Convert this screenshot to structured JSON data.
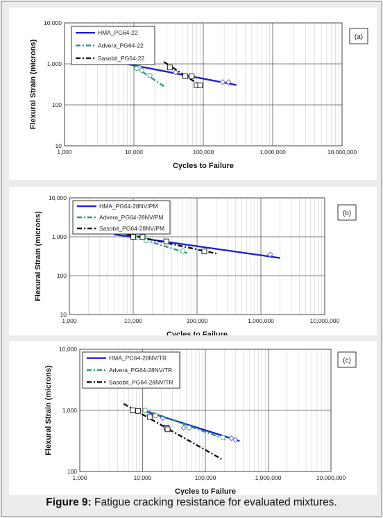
{
  "caption": {
    "label": "Figure 9:",
    "text": " Fatigue cracking resistance for evaluated mixtures."
  },
  "chart_data": [
    {
      "type": "scatter",
      "panel_label": "(a)",
      "xlabel": "Cycles to Failure",
      "ylabel": "Flexural Strain (microns)",
      "x_scale": "log",
      "y_scale": "log",
      "xlim": [
        1000,
        10000000
      ],
      "ylim": [
        10,
        10000
      ],
      "xticks": [
        "1,000",
        "10,000",
        "100,000",
        "1,000,000",
        "10,000,000"
      ],
      "yticks": [
        "10",
        "100",
        "1,000",
        "10,000"
      ],
      "grid": true,
      "legend": "top-left",
      "series": [
        {
          "name": "HMA_PG64-22",
          "color": "#1f1fd6",
          "dash": "solid",
          "marker": "diamond",
          "points": [
            [
              12000,
              820
            ],
            [
              40000,
              620
            ],
            [
              190000,
              360
            ],
            [
              230000,
              360
            ]
          ],
          "fit": [
            [
              5000,
              1150
            ],
            [
              300000,
              305
            ]
          ]
        },
        {
          "name": "Advera_PG64-22",
          "color": "#2a9a78",
          "dash": "dashdot",
          "marker": "circle",
          "points": [
            [
              11000,
              780
            ],
            [
              13000,
              700
            ],
            [
              17000,
              520
            ]
          ],
          "fit": [
            [
              10000,
              880
            ],
            [
              27000,
              285
            ]
          ]
        },
        {
          "name": "Sasobit_PG64-22",
          "color": "#111111",
          "dash": "dashdot",
          "marker": "square",
          "points": [
            [
              33000,
              820
            ],
            [
              55000,
              500
            ],
            [
              68000,
              500
            ],
            [
              80000,
              300
            ],
            [
              90000,
              300
            ]
          ],
          "fit": [
            [
              27000,
              1120
            ],
            [
              90000,
              300
            ]
          ]
        }
      ]
    },
    {
      "type": "scatter",
      "panel_label": "(b)",
      "xlabel": "Cycles to Failure",
      "ylabel": "Flexural Strain (microns)",
      "x_scale": "log",
      "y_scale": "log",
      "xlim": [
        1000,
        10000000
      ],
      "ylim": [
        10,
        10000
      ],
      "xticks": [
        "1,000",
        "10,000",
        "100,000",
        "1,000,000",
        "10,000,000"
      ],
      "yticks": [
        "10",
        "100",
        "1,000",
        "10,000"
      ],
      "grid": true,
      "legend": "top-left",
      "series": [
        {
          "name": "HMA_PG64-28NV/PM",
          "color": "#1f1fd6",
          "dash": "solid",
          "marker": "diamond",
          "points": [
            [
              11000,
              980
            ],
            [
              1400000,
              350
            ]
          ],
          "fit": [
            [
              5000,
              1150
            ],
            [
              2000000,
              285
            ]
          ]
        },
        {
          "name": "Advera_PG64-28NV/PM",
          "color": "#2a9a78",
          "dash": "dashdot",
          "marker": "circle",
          "points": [
            [
              12000,
              950
            ],
            [
              16000,
              800
            ],
            [
              60000,
              430
            ]
          ],
          "fit": [
            [
              5000,
              1450
            ],
            [
              70000,
              380
            ]
          ]
        },
        {
          "name": "Sasobit_PG64-28NV/PM",
          "color": "#111111",
          "dash": "dashdot",
          "marker": "square",
          "points": [
            [
              10000,
              1000
            ],
            [
              14000,
              990
            ],
            [
              33000,
              760
            ],
            [
              130000,
              420
            ]
          ],
          "fit": [
            [
              8000,
              1150
            ],
            [
              200000,
              370
            ]
          ]
        }
      ]
    },
    {
      "type": "scatter",
      "panel_label": "(c)",
      "xlabel": "Cycles to Failure",
      "ylabel": "Flexural Strain (microns)",
      "x_scale": "log",
      "y_scale": "log",
      "xlim": [
        1000,
        10000000
      ],
      "ylim": [
        100,
        10000
      ],
      "xticks": [
        "1,000",
        "10,000",
        "100,000",
        "1,000,000",
        "10,000,000"
      ],
      "yticks": [
        "100",
        "1,000",
        "10,000"
      ],
      "grid": true,
      "legend": "top-left",
      "series": [
        {
          "name": "HMA_PG64-28NV/TR",
          "color": "#1f1fd6",
          "dash": "solid",
          "marker": "diamond",
          "points": [
            [
              21000,
              750
            ],
            [
              45000,
              520
            ],
            [
              260000,
              350
            ],
            [
              300000,
              330
            ]
          ],
          "fit": [
            [
              10000,
              1000
            ],
            [
              350000,
              315
            ]
          ]
        },
        {
          "name": "Advera_PG64-28NV/TR",
          "color": "#2a9a78",
          "dash": "dashdot",
          "marker": "circle",
          "points": [
            [
              11000,
              1000
            ],
            [
              16000,
              820
            ],
            [
              55000,
              520
            ],
            [
              190000,
              360
            ]
          ],
          "fit": [
            [
              10000,
              1050
            ],
            [
              220000,
              330
            ]
          ]
        },
        {
          "name": "Sasobit_PG64-28NV/TR",
          "color": "#111111",
          "dash": "dashdot",
          "marker": "square",
          "points": [
            [
              7000,
              1000
            ],
            [
              8500,
              980
            ],
            [
              13000,
              780
            ],
            [
              24000,
              520
            ],
            [
              25000,
              490
            ]
          ],
          "fit": [
            [
              5000,
              1280
            ],
            [
              180000,
              160
            ]
          ]
        }
      ]
    }
  ]
}
